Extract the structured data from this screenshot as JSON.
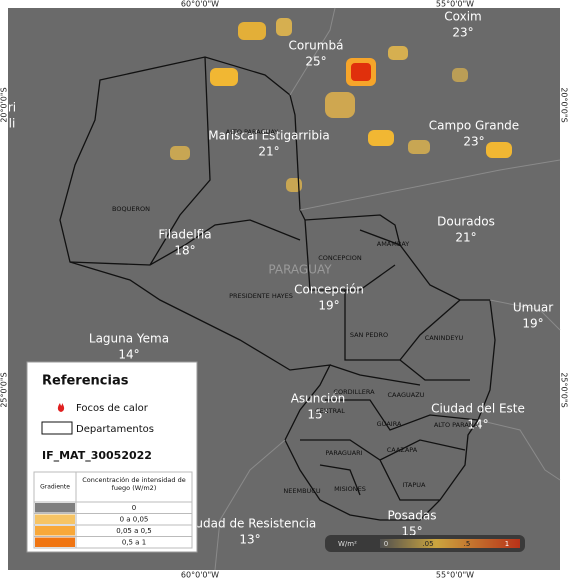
{
  "coordinates": {
    "top": [
      "60°0'0\"W",
      "55°0'0\"W"
    ],
    "bottom": [
      "60°0'0\"W",
      "55°0'0\"W"
    ],
    "left": [
      "20°0'0\"S",
      "25°0'0\"S"
    ],
    "right": [
      "20°0'0\"S",
      "25°0'0\"S"
    ]
  },
  "places": [
    {
      "name": "Coxim",
      "temp": "23°"
    },
    {
      "name": "Corumbá",
      "temp": "25°"
    },
    {
      "name": "Mariscal Estigarribia",
      "temp": "21°"
    },
    {
      "name": "Campo Grande",
      "temp": "23°"
    },
    {
      "name": "Dourados",
      "temp": "21°"
    },
    {
      "name": "Filadelfia",
      "temp": "18°"
    },
    {
      "name": "Concepción",
      "temp": "19°"
    },
    {
      "name": "Umuar",
      "temp": "19°"
    },
    {
      "name": "Laguna Yema",
      "temp": "14°"
    },
    {
      "name": "Asunción",
      "temp": "15°"
    },
    {
      "name": "Ciudad del Este",
      "temp": "14°"
    },
    {
      "name": "Posadas",
      "temp": "15°"
    },
    {
      "name": "Ciudad de Resistencia",
      "temp": "13°"
    },
    {
      "name": "ri",
      "temp": "li"
    }
  ],
  "country": "PARAGUAY",
  "departments": [
    "ALTO PARAGUAY",
    "BOQUERON",
    "PRESIDENTE HAYES",
    "CONCEPCION",
    "AMAMBAY",
    "SAN PEDRO",
    "CANINDEYU",
    "CORDILLERA",
    "CENTRAL",
    "CAAGUAZU",
    "ALTO PARANA",
    "GUAIRA",
    "PARAGUARI",
    "CAAZAPA",
    "ITAPUA",
    "MISIONES",
    "NEEMBUCU"
  ],
  "legend": {
    "title": "Referencias",
    "items": [
      "Focos de calor",
      "Departamentos"
    ],
    "product": "IF_MAT_30052022",
    "table": {
      "headers": [
        "Gradiente",
        "Concentración de intensidad de fuego (W/m2)"
      ],
      "rows": [
        "0",
        "0 a 0,05",
        "0,05 a 0,5",
        "0,5 a 1"
      ]
    }
  },
  "colorbar": {
    "unit": "W/m²",
    "labels": [
      "0",
      ".05",
      ".5",
      "1"
    ]
  }
}
